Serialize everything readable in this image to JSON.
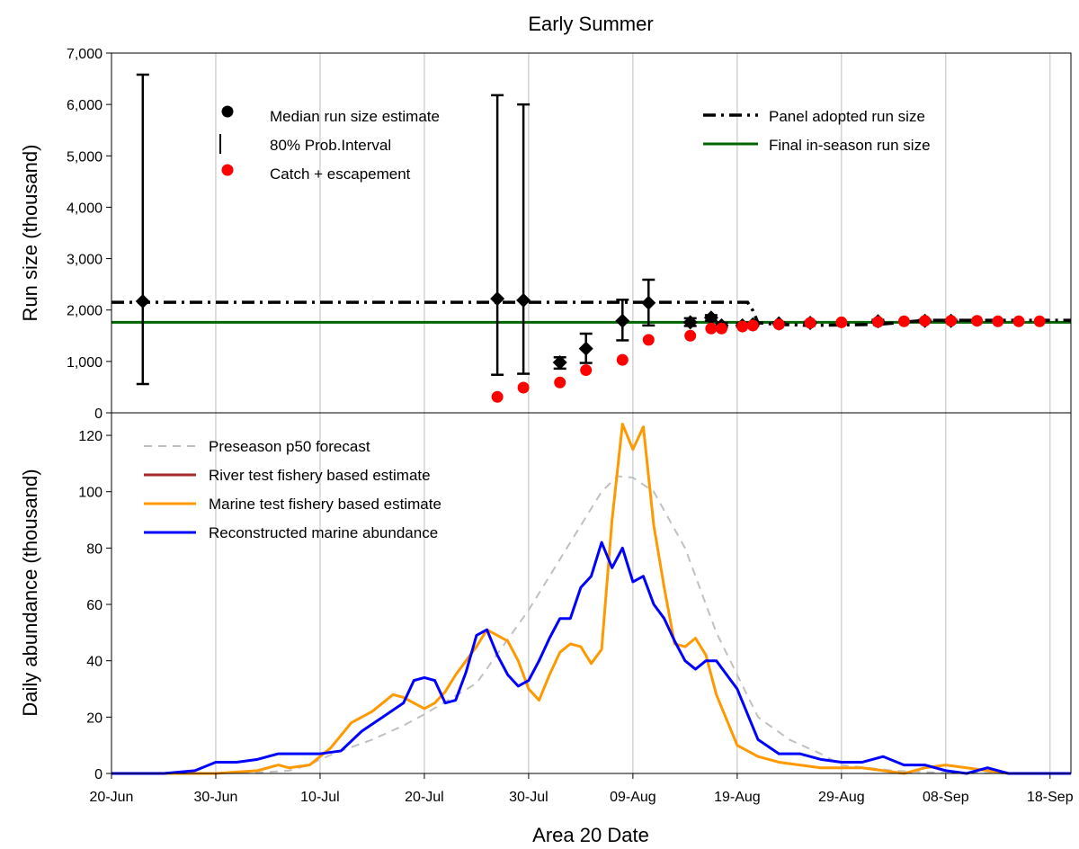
{
  "title": "Early Summer",
  "xlabel": "Area 20 Date",
  "colors": {
    "median": "#000000",
    "catch_escapement": "#ff0000",
    "panel_adopted": "#000000",
    "final_inseason": "#006400",
    "preseason": "#c0c0c0",
    "river": "#a52a2a",
    "marine": "#ff9900",
    "reconstructed": "#0000ff"
  },
  "chart_data": [
    {
      "type": "scatter",
      "panel": "top",
      "ylabel": "Run size (thousand)",
      "xlim_day": [
        0,
        92
      ],
      "ylim": [
        0,
        7000
      ],
      "y_ticks": [
        "0",
        "1,000",
        "2,000",
        "3,000",
        "4,000",
        "5,000",
        "6,000",
        "7,000"
      ],
      "grid": "vertical",
      "legend_left": [
        "Median run size estimate",
        "80% Prob.Interval",
        "Catch + escapement"
      ],
      "legend_right": [
        "Panel adopted run size",
        "Final in-season run size"
      ],
      "median_estimates": [
        {
          "day": 3,
          "median": 2170,
          "low": 560,
          "high": 6580
        },
        {
          "day": 37,
          "median": 2220,
          "low": 740,
          "high": 6180
        },
        {
          "day": 39.5,
          "median": 2190,
          "low": 760,
          "high": 6000
        },
        {
          "day": 43,
          "median": 980,
          "low": 860,
          "high": 1080
        },
        {
          "day": 45.5,
          "median": 1250,
          "low": 970,
          "high": 1540
        },
        {
          "day": 49,
          "median": 1790,
          "low": 1410,
          "high": 2200
        },
        {
          "day": 51.5,
          "median": 2140,
          "low": 1700,
          "high": 2590
        },
        {
          "day": 55.5,
          "median": 1760,
          "low": 1690,
          "high": 1840
        },
        {
          "day": 57.5,
          "median": 1850,
          "low": 1790,
          "high": 1900
        },
        {
          "day": 58.5,
          "median": 1700,
          "low": 1660,
          "high": 1750
        },
        {
          "day": 60.5,
          "median": 1700,
          "low": 1670,
          "high": 1740
        },
        {
          "day": 61.5,
          "median": 1720,
          "low": 1690,
          "high": 1750
        },
        {
          "day": 64,
          "median": 1740,
          "low": 1720,
          "high": 1760
        },
        {
          "day": 67,
          "median": 1750,
          "low": 1730,
          "high": 1770
        },
        {
          "day": 73.5,
          "median": 1780,
          "low": 1750,
          "high": 1810
        },
        {
          "day": 78,
          "median": 1790,
          "low": 1770,
          "high": 1810
        },
        {
          "day": 80.5,
          "median": 1790,
          "low": 1770,
          "high": 1810
        }
      ],
      "catch_escapement": [
        {
          "day": 37,
          "value": 310
        },
        {
          "day": 39.5,
          "value": 490
        },
        {
          "day": 43,
          "value": 590
        },
        {
          "day": 45.5,
          "value": 830
        },
        {
          "day": 49,
          "value": 1030
        },
        {
          "day": 51.5,
          "value": 1420
        },
        {
          "day": 55.5,
          "value": 1500
        },
        {
          "day": 57.5,
          "value": 1640
        },
        {
          "day": 58.5,
          "value": 1640
        },
        {
          "day": 60.5,
          "value": 1680
        },
        {
          "day": 61.5,
          "value": 1700
        },
        {
          "day": 64,
          "value": 1720
        },
        {
          "day": 67,
          "value": 1750
        },
        {
          "day": 70,
          "value": 1760
        },
        {
          "day": 73.5,
          "value": 1770
        },
        {
          "day": 76,
          "value": 1780
        },
        {
          "day": 78,
          "value": 1790
        },
        {
          "day": 80.5,
          "value": 1790
        },
        {
          "day": 83,
          "value": 1790
        },
        {
          "day": 85,
          "value": 1780
        },
        {
          "day": 87,
          "value": 1780
        },
        {
          "day": 89,
          "value": 1780
        }
      ],
      "panel_adopted_run_size": [
        {
          "day": 0,
          "value": 2150
        },
        {
          "day": 61,
          "value": 2150
        },
        {
          "day": 61.5,
          "value": 1990
        },
        {
          "day": 62,
          "value": 1750
        },
        {
          "day": 64,
          "value": 1720
        },
        {
          "day": 67,
          "value": 1700
        },
        {
          "day": 73.5,
          "value": 1720
        },
        {
          "day": 78,
          "value": 1800
        },
        {
          "day": 92,
          "value": 1800
        }
      ],
      "final_inseason_run_size": 1760
    },
    {
      "type": "line",
      "panel": "bottom",
      "ylabel": "Daily abundance (thousand)",
      "xlabel": "Area 20 Date",
      "xlim_day": [
        0,
        92
      ],
      "ylim": [
        0,
        128
      ],
      "y_ticks": [
        "0",
        "20",
        "40",
        "60",
        "80",
        "100",
        "120"
      ],
      "x_ticks": [
        "20-Jun",
        "30-Jun",
        "10-Jul",
        "20-Jul",
        "30-Jul",
        "09-Aug",
        "19-Aug",
        "29-Aug",
        "08-Sep",
        "18-Sep"
      ],
      "x_tick_days": [
        0,
        10,
        20,
        30,
        40,
        50,
        60,
        70,
        80,
        90
      ],
      "grid": "vertical",
      "series": [
        {
          "name": "Preseason p50 forecast",
          "style": "dashed",
          "x": [
            0,
            10,
            14,
            17,
            19,
            20,
            22,
            25,
            28,
            30,
            35,
            40,
            45,
            47,
            48.5,
            50,
            52,
            55,
            58,
            60,
            62,
            65,
            68,
            70,
            75,
            80,
            92
          ],
          "y": [
            0,
            0,
            0.3,
            1,
            3,
            5,
            8,
            12,
            17,
            21,
            32,
            58,
            88,
            100,
            105.5,
            105,
            100,
            80,
            50,
            35,
            20,
            12,
            7,
            3,
            1,
            0.2,
            0
          ]
        },
        {
          "name": "River test fishery based estimate",
          "style": "solid",
          "x": [
            0,
            3
          ],
          "y": [
            0,
            0
          ]
        },
        {
          "name": "Marine test fishery based estimate",
          "style": "solid",
          "x": [
            0,
            3,
            10,
            14,
            16,
            17,
            19,
            21,
            23,
            25,
            27,
            28,
            30,
            31,
            32,
            33,
            34,
            35,
            36,
            38,
            39,
            40,
            41,
            42,
            43,
            44,
            45,
            46,
            47,
            48,
            49,
            50,
            51,
            52,
            53,
            54,
            55,
            56,
            57,
            58,
            60,
            62,
            64,
            66,
            68,
            70,
            72,
            74,
            76,
            78,
            80,
            82,
            84,
            86,
            88,
            92
          ],
          "y": [
            0,
            0,
            0,
            1,
            3,
            2,
            3,
            9,
            18,
            22,
            28,
            27,
            23,
            25,
            29,
            35,
            40,
            45,
            51,
            47,
            40,
            30,
            26,
            35,
            43,
            46,
            45,
            39,
            44,
            90,
            124,
            115,
            123,
            88,
            66,
            46,
            45,
            48,
            42,
            28,
            10,
            6,
            4,
            3,
            2,
            2,
            2,
            1,
            0,
            2,
            3,
            2,
            1,
            0,
            0,
            0
          ]
        },
        {
          "name": "Reconstructed marine abundance",
          "style": "solid",
          "x": [
            0,
            5,
            8,
            10,
            12,
            14,
            16,
            18,
            20,
            22,
            24,
            26,
            28,
            29,
            30,
            31,
            32,
            33,
            34,
            35,
            36,
            37,
            38,
            39,
            40,
            41,
            42,
            43,
            44,
            45,
            46,
            47,
            48,
            49,
            50,
            51,
            52,
            53,
            54,
            55,
            56,
            57,
            58,
            60,
            62,
            64,
            66,
            68,
            70,
            72,
            74,
            76,
            78,
            80,
            82,
            84,
            86,
            92
          ],
          "y": [
            0,
            0,
            1,
            4,
            4,
            5,
            7,
            7,
            7,
            8,
            15,
            20,
            25,
            33,
            34,
            33,
            25,
            26,
            36,
            49,
            51,
            42,
            35,
            31,
            33,
            40,
            48,
            55,
            55,
            66,
            70,
            82,
            73,
            80,
            68,
            70,
            60,
            55,
            47,
            40,
            37,
            40,
            40,
            30,
            12,
            7,
            7,
            5,
            4,
            4,
            6,
            3,
            3,
            1,
            0,
            2,
            0,
            0
          ]
        }
      ]
    }
  ]
}
